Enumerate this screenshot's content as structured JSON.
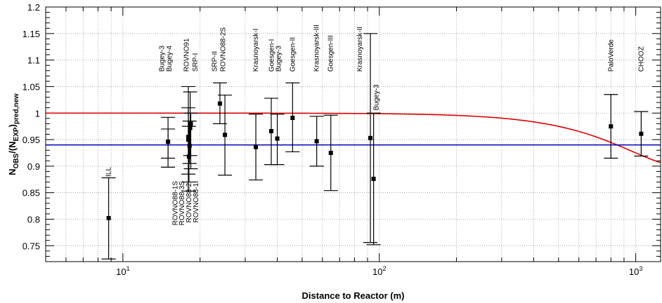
{
  "chart_data": {
    "type": "scatter",
    "title": "",
    "xlabel": "Distance to Reactor (m)",
    "ylabel": {
      "base": "N",
      "base_sub": "OBS",
      "middle": "/(N",
      "middle_sub": "EXP",
      "end": ")",
      "end_sub": "pred,new"
    },
    "xscale": "log",
    "xlim": [
      5,
      1250
    ],
    "ylim": [
      0.72,
      1.2
    ],
    "grid": true,
    "x_ticks": [
      {
        "value": 10,
        "base": "10",
        "exp": "1"
      },
      {
        "value": 100,
        "base": "10",
        "exp": "2"
      },
      {
        "value": 1000,
        "base": "10",
        "exp": "3"
      }
    ],
    "y_ticks": [
      "0.75",
      "0.8",
      "0.85",
      "0.9",
      "0.95",
      "1",
      "1.05",
      "1.1",
      "1.15",
      "1.2"
    ],
    "series": [
      {
        "color": "#000000",
        "points": [
          {
            "x": 8.8,
            "y": 0.802,
            "ylow": 0.725,
            "yhigh": 0.878
          },
          {
            "x": 15.0,
            "y": 0.946,
            "ylow": 0.915,
            "yhigh": 0.97
          },
          {
            "x": 15.0,
            "y": 0.946,
            "ylow": 0.898,
            "yhigh": 0.992
          },
          {
            "x": 18.0,
            "y": 0.95,
            "ylow": 0.885,
            "yhigh": 1.05
          },
          {
            "x": 18.3,
            "y": 0.972,
            "ylow": 0.92,
            "yhigh": 1.04
          },
          {
            "x": 18.2,
            "y": 0.938,
            "ylow": 0.905,
            "yhigh": 0.985
          },
          {
            "x": 18.1,
            "y": 0.918,
            "ylow": 0.87,
            "yhigh": 0.975
          },
          {
            "x": 18.0,
            "y": 0.955,
            "ylow": 0.853,
            "yhigh": 1.01
          },
          {
            "x": 18.4,
            "y": 0.98,
            "ylow": 0.895,
            "yhigh": 1.0
          },
          {
            "x": 23.9,
            "y": 1.018,
            "ylow": 0.98,
            "yhigh": 1.057
          },
          {
            "x": 25.0,
            "y": 0.959,
            "ylow": 0.883,
            "yhigh": 1.034
          },
          {
            "x": 33.0,
            "y": 0.936,
            "ylow": 0.874,
            "yhigh": 0.998
          },
          {
            "x": 37.9,
            "y": 0.966,
            "ylow": 0.903,
            "yhigh": 1.028
          },
          {
            "x": 40.0,
            "y": 0.952,
            "ylow": 0.903,
            "yhigh": 0.998
          },
          {
            "x": 45.9,
            "y": 0.991,
            "ylow": 0.927,
            "yhigh": 1.057
          },
          {
            "x": 57.0,
            "y": 0.947,
            "ylow": 0.9,
            "yhigh": 0.994
          },
          {
            "x": 64.7,
            "y": 0.925,
            "ylow": 0.854,
            "yhigh": 0.996
          },
          {
            "x": 92.3,
            "y": 0.953,
            "ylow": 0.756,
            "yhigh": 1.15
          },
          {
            "x": 95.0,
            "y": 0.876,
            "ylow": 0.752,
            "yhigh": 1.0
          },
          {
            "x": 800,
            "y": 0.975,
            "ylow": 0.915,
            "yhigh": 1.035
          },
          {
            "x": 1050,
            "y": 0.961,
            "ylow": 0.919,
            "yhigh": 1.003
          }
        ]
      }
    ],
    "lines": [
      {
        "color": "#dd0000",
        "shape": "oscillation",
        "level": 1.0,
        "amplitude": 0.1,
        "scale_m": 1500
      },
      {
        "color": "#0000bb",
        "shape": "constant",
        "level": 0.94
      }
    ],
    "annotations": [
      {
        "text": "ILL",
        "x": 8.8,
        "y": 0.88
      },
      {
        "text": "Bugey-3",
        "x": 14.2,
        "y": 1.078
      },
      {
        "text": "Bugey-4",
        "x": 15.2,
        "y": 1.078
      },
      {
        "text": "ROVNO91",
        "x": 17.7,
        "y": 1.078
      },
      {
        "text": "SRP-I",
        "x": 19.2,
        "y": 1.078
      },
      {
        "text": "SRP-II",
        "x": 22.8,
        "y": 1.078
      },
      {
        "text": "ROVNO88-2S",
        "x": 24.6,
        "y": 1.078
      },
      {
        "text": "Krasnoyarsk-I",
        "x": 33.0,
        "y": 1.078
      },
      {
        "text": "Goesgen-I",
        "x": 38.0,
        "y": 1.078
      },
      {
        "text": "Bugey-3",
        "x": 40.5,
        "y": 1.078
      },
      {
        "text": "Goesgen-II",
        "x": 46.0,
        "y": 1.078
      },
      {
        "text": "Krasnoyarsk-III",
        "x": 57.0,
        "y": 1.078
      },
      {
        "text": "Goesgen-III",
        "x": 64.7,
        "y": 1.078
      },
      {
        "text": "Krasnoyarsk-II",
        "x": 84.0,
        "y": 1.078
      },
      {
        "text": "Bugey-3",
        "x": 97.5,
        "y": 1.005
      },
      {
        "text": "PaloVerde",
        "x": 800,
        "y": 1.078
      },
      {
        "text": "CHOOZ",
        "x": 1050,
        "y": 1.078
      }
    ],
    "annotations_below": [
      {
        "text": "ROVNO88-1S",
        "x": 16.0,
        "y": 0.872
      },
      {
        "text": "ROVNO88-3S",
        "x": 17.0,
        "y": 0.872
      },
      {
        "text": "ROVNO88-2I",
        "x": 18.1,
        "y": 0.872
      },
      {
        "text": "ROVNO88-1I",
        "x": 19.3,
        "y": 0.872
      }
    ]
  }
}
